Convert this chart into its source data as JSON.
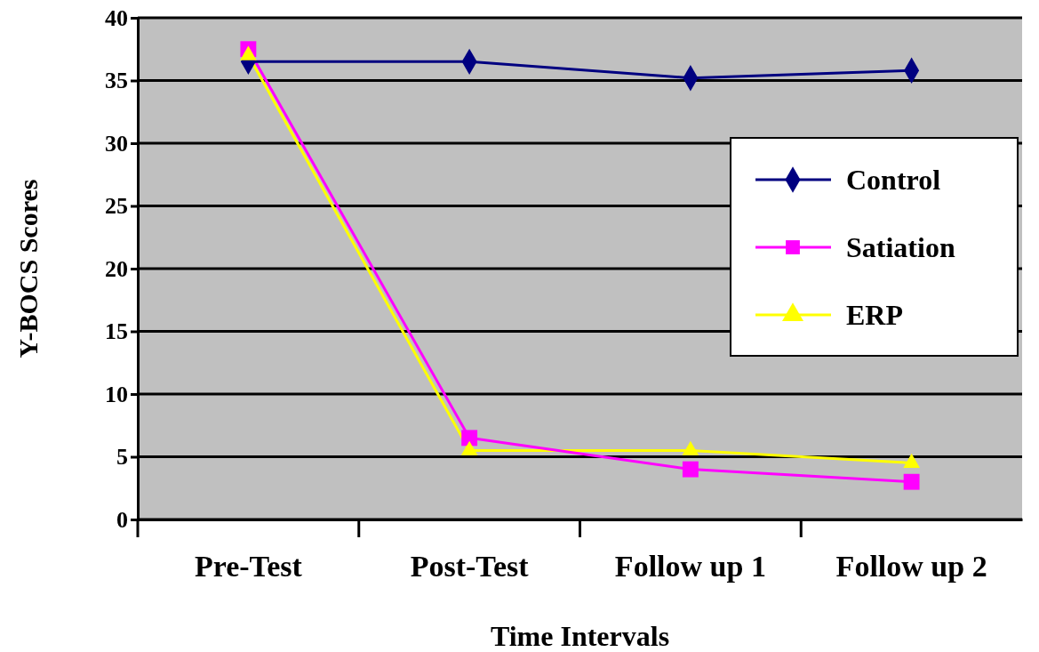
{
  "chart_data": {
    "type": "line",
    "xlabel": "Time Intervals",
    "ylabel": "Y-BOCS Scores",
    "categories": [
      "Pre-Test",
      "Post-Test",
      "Follow up 1",
      "Follow up 2"
    ],
    "series": [
      {
        "name": "Control",
        "color": "#000080",
        "marker": "diamond",
        "values": [
          36.5,
          36.5,
          35.2,
          35.8
        ]
      },
      {
        "name": "Satiation",
        "color": "#ff00ff",
        "marker": "square",
        "values": [
          37.5,
          6.5,
          4,
          3
        ]
      },
      {
        "name": "ERP",
        "color": "#ffff00",
        "marker": "triangle",
        "values": [
          37,
          5.5,
          5.5,
          4.5
        ]
      }
    ],
    "ylim": [
      0,
      40
    ],
    "yticks": [
      0,
      5,
      10,
      15,
      20,
      25,
      30,
      35,
      40
    ],
    "grid": "y",
    "legend": "right"
  }
}
